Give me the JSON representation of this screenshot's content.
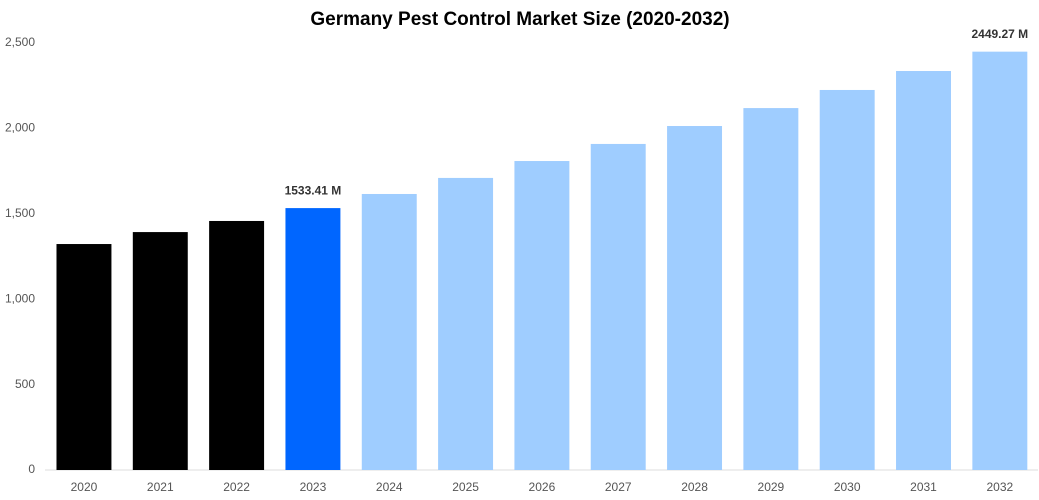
{
  "chart_data": {
    "type": "bar",
    "title": "Germany Pest Control Market Size (2020-2032)",
    "categories": [
      "2020",
      "2021",
      "2022",
      "2023",
      "2024",
      "2025",
      "2026",
      "2027",
      "2028",
      "2029",
      "2030",
      "2031",
      "2032"
    ],
    "values": [
      1323,
      1393,
      1458,
      1533.41,
      1616,
      1710,
      1809,
      1909,
      2014,
      2119,
      2225,
      2336,
      2449.27
    ],
    "value_labels": [
      null,
      null,
      null,
      "1533.41 M",
      null,
      null,
      null,
      null,
      null,
      null,
      null,
      null,
      "2449.27 M"
    ],
    "colors": [
      "#000000",
      "#000000",
      "#000000",
      "#0066ff",
      "#9fcdff",
      "#9fcdff",
      "#9fcdff",
      "#9fcdff",
      "#9fcdff",
      "#9fcdff",
      "#9fcdff",
      "#9fcdff",
      "#9fcdff"
    ],
    "ylim": [
      0,
      2500
    ],
    "yticks": [
      0,
      500,
      {
        "value": 1000,
        "label": "1,000"
      },
      {
        "value": 1500,
        "label": "1,500"
      },
      {
        "value": 2000,
        "label": "2,000"
      },
      {
        "value": 2500,
        "label": "2,500"
      }
    ],
    "grid": false
  }
}
